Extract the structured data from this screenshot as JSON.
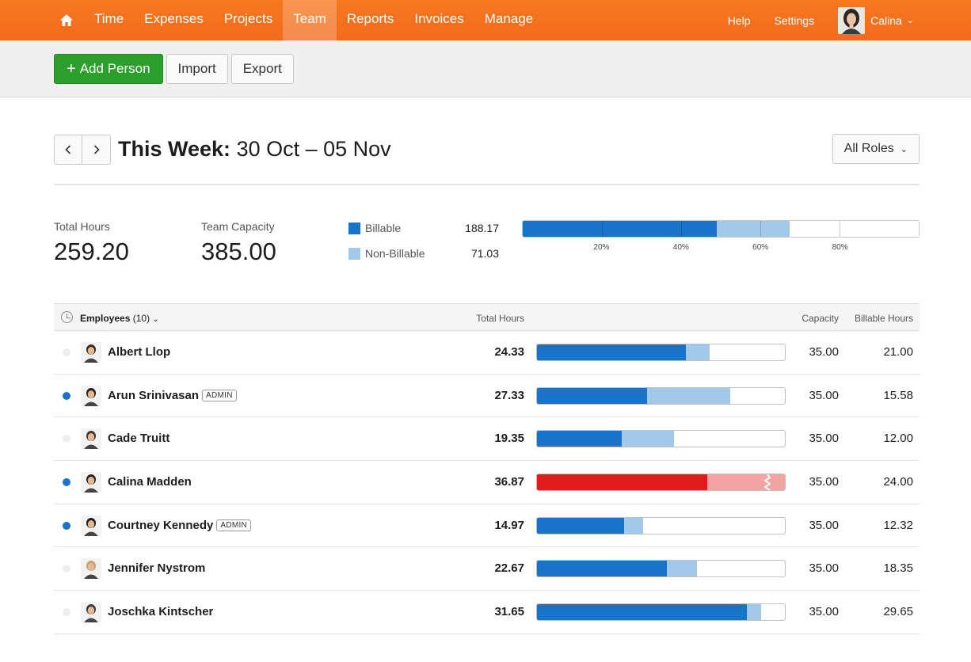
{
  "colors": {
    "brand_orange": "#f36c1f",
    "billable": "#1874c9",
    "non_billable": "#a2c9ea",
    "over_billable": "#e01d1d",
    "over_non_billable": "#f4a3a3",
    "add_button": "#2b9e2b"
  },
  "nav": {
    "home_icon": "home-icon",
    "items": [
      "Time",
      "Expenses",
      "Projects",
      "Team",
      "Reports",
      "Invoices",
      "Manage"
    ],
    "active": "Team",
    "help": "Help",
    "settings": "Settings",
    "user_name": "Calina"
  },
  "toolbar": {
    "add_label": "Add Person",
    "import_label": "Import",
    "export_label": "Export"
  },
  "week": {
    "prefix": "This Week:",
    "range": "30 Oct – 05 Nov",
    "roles_label": "All Roles"
  },
  "summary": {
    "total_hours_label": "Total Hours",
    "total_hours": "259.20",
    "capacity_label": "Team Capacity",
    "capacity": "385.00",
    "billable_label": "Billable",
    "billable_value": "188.17",
    "non_billable_label": "Non-Billable",
    "non_billable_value": "71.03",
    "bar": {
      "billable_pct": 48.9,
      "non_billable_pct": 18.4
    },
    "tick_labels": [
      "20%",
      "40%",
      "60%",
      "80%"
    ]
  },
  "table": {
    "headers": {
      "employees": "Employees",
      "employees_count": "(10)",
      "total_hours": "Total Hours",
      "capacity": "Capacity",
      "billable_hours": "Billable Hours"
    },
    "rows": [
      {
        "name": "Albert Llop",
        "admin": "",
        "dot": false,
        "hours": "24.33",
        "capacity": "35.00",
        "billable": "21.00",
        "billable_pct": 60.0,
        "non_billable_pct": 9.5,
        "over": false
      },
      {
        "name": "Arun Srinivasan",
        "admin": "ADMIN",
        "dot": true,
        "hours": "27.33",
        "capacity": "35.00",
        "billable": "15.58",
        "billable_pct": 44.5,
        "non_billable_pct": 33.6,
        "over": false
      },
      {
        "name": "Cade Truitt",
        "admin": "",
        "dot": false,
        "hours": "19.35",
        "capacity": "35.00",
        "billable": "12.00",
        "billable_pct": 34.3,
        "non_billable_pct": 21.0,
        "over": false
      },
      {
        "name": "Calina Madden",
        "admin": "",
        "dot": true,
        "hours": "36.87",
        "capacity": "35.00",
        "billable": "24.00",
        "billable_pct": 68.6,
        "non_billable_pct": 31.4,
        "over": true
      },
      {
        "name": "Courtney Kennedy",
        "admin": "ADMIN",
        "dot": true,
        "hours": "14.97",
        "capacity": "35.00",
        "billable": "12.32",
        "billable_pct": 35.2,
        "non_billable_pct": 7.6,
        "over": false
      },
      {
        "name": "Jennifer Nystrom",
        "admin": "",
        "dot": false,
        "hours": "22.67",
        "capacity": "35.00",
        "billable": "18.35",
        "billable_pct": 52.4,
        "non_billable_pct": 12.3,
        "over": false
      },
      {
        "name": "Joschka Kintscher",
        "admin": "",
        "dot": false,
        "hours": "31.65",
        "capacity": "35.00",
        "billable": "29.65",
        "billable_pct": 84.7,
        "non_billable_pct": 5.7,
        "over": false
      }
    ]
  }
}
